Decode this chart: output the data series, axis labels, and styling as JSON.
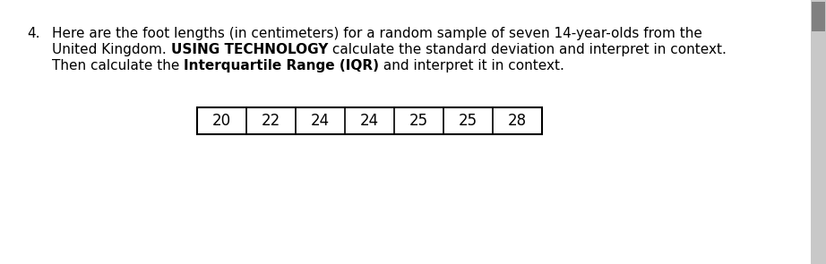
{
  "question_number": "4.",
  "line1": "Here are the foot lengths (in centimeters) for a random sample of seven 14-year-olds from the",
  "line2_parts": [
    [
      "United Kingdom. ",
      false
    ],
    [
      "USING TECHNOLOGY",
      true
    ],
    [
      " calculate the standard deviation and interpret in context.",
      false
    ]
  ],
  "line3_parts": [
    [
      "Then calculate the ",
      false
    ],
    [
      "Interquartile Range (IQR)",
      true
    ],
    [
      " and interpret it in context.",
      false
    ]
  ],
  "table_values": [
    "20",
    "22",
    "24",
    "24",
    "25",
    "25",
    "28"
  ],
  "background_color": "#ffffff",
  "text_color": "#000000",
  "font_size": 11.0,
  "table_font_size": 12.0,
  "scrollbar_bg": "#c8c8c8",
  "scrollbar_thumb": "#808080"
}
